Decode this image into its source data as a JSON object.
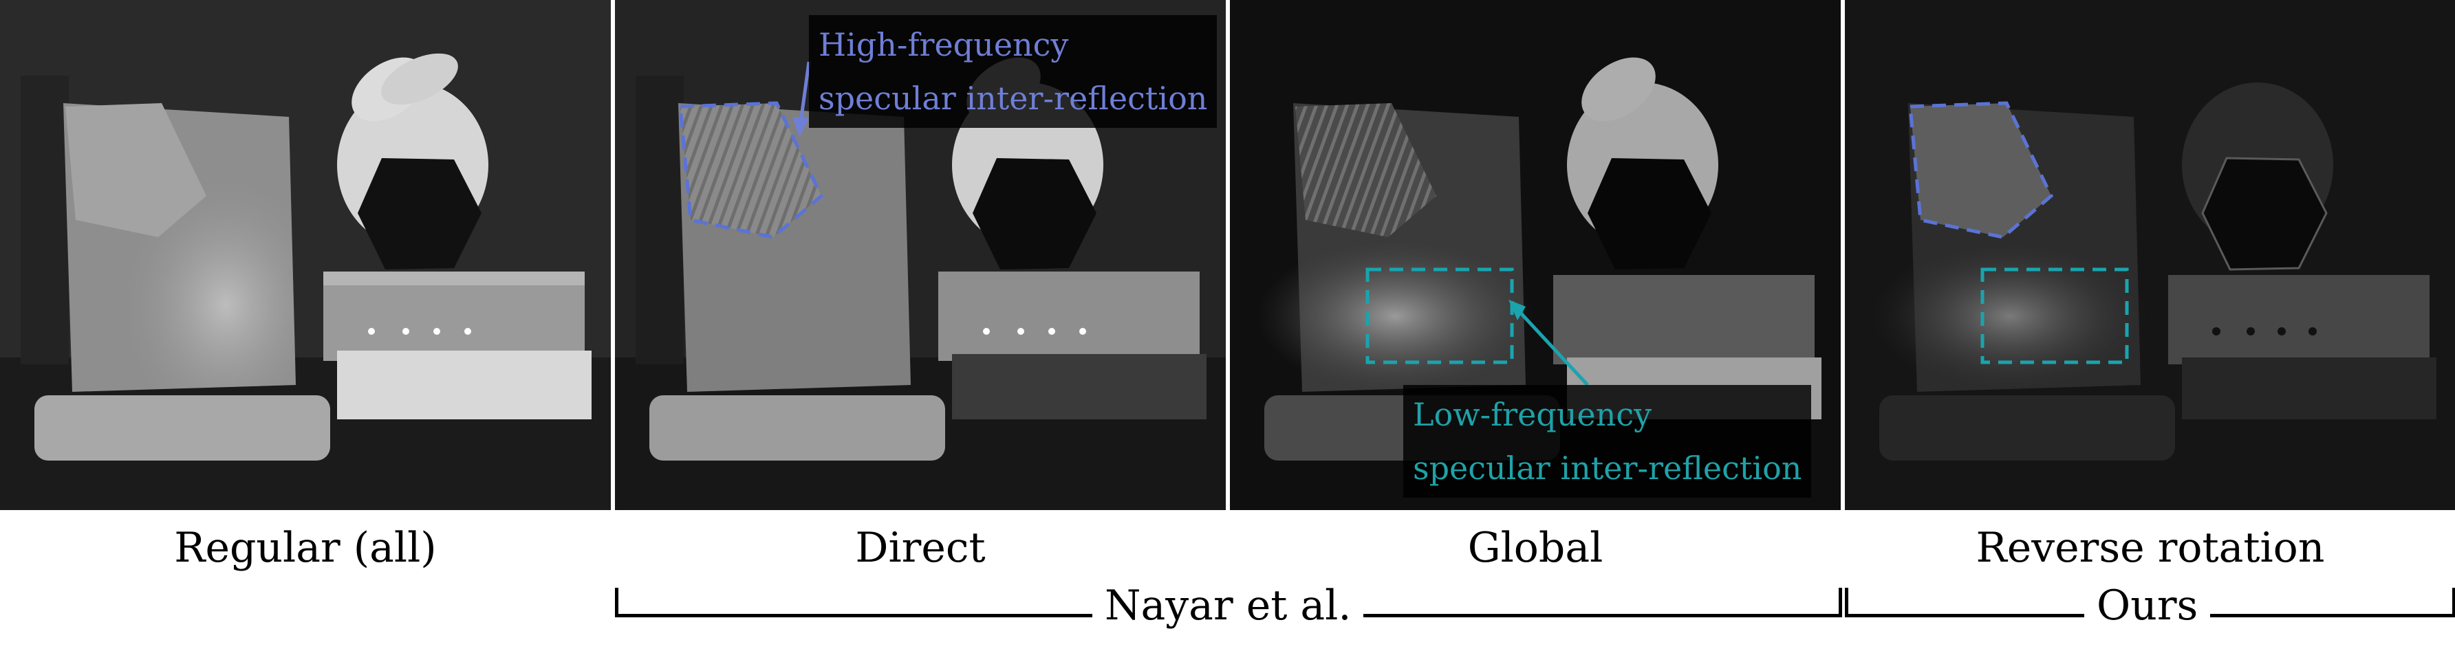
{
  "panels": [
    {
      "caption": "Regular (all)"
    },
    {
      "caption": "Direct"
    },
    {
      "caption": "Global"
    },
    {
      "caption": "Reverse rotation"
    }
  ],
  "annotations": {
    "high_frequency": {
      "line1": "High-frequency",
      "line2": "specular inter-reflection",
      "color": "#6f7fd6"
    },
    "low_frequency": {
      "line1": "Low-frequency",
      "line2": "specular inter-reflection",
      "color": "#1fa2a8"
    }
  },
  "groups": {
    "nayar": "Nayar et al.",
    "ours": "Ours"
  },
  "colors": {
    "highlight_blue": "#5b73d6",
    "highlight_cyan": "#1aa4ae"
  }
}
